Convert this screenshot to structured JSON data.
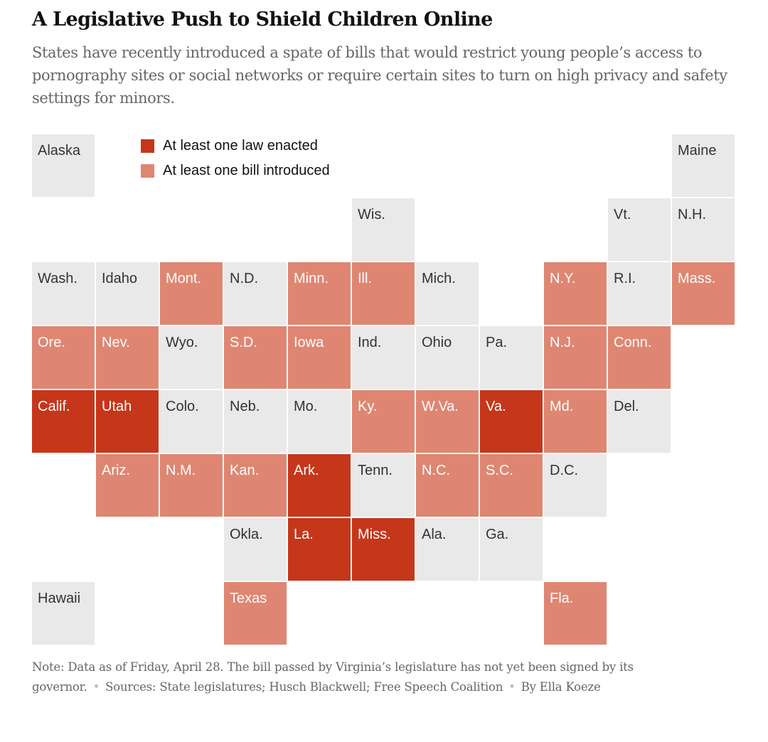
{
  "header": {
    "title": "A Legislative Push to Shield Children Online",
    "subtitle": "States have recently introduced a spate of bills that would restrict young people’s access to pornography sites or social networks or require certain sites to turn on high privacy and safety settings for minors."
  },
  "legend": {
    "items": [
      {
        "status": "enacted",
        "label": "At least one law enacted"
      },
      {
        "status": "introduced",
        "label": "At least one bill introduced"
      }
    ]
  },
  "colors": {
    "enacted": "#c5361a",
    "introduced": "#de8672",
    "none": "#e9e9e9"
  },
  "map": {
    "states": [
      {
        "label": "Alaska",
        "row": 0,
        "col": 0,
        "status": "none"
      },
      {
        "label": "Maine",
        "row": 0,
        "col": 10,
        "status": "none"
      },
      {
        "label": "Wis.",
        "row": 1,
        "col": 5,
        "status": "none"
      },
      {
        "label": "Vt.",
        "row": 1,
        "col": 9,
        "status": "none"
      },
      {
        "label": "N.H.",
        "row": 1,
        "col": 10,
        "status": "none"
      },
      {
        "label": "Wash.",
        "row": 2,
        "col": 0,
        "status": "none"
      },
      {
        "label": "Idaho",
        "row": 2,
        "col": 1,
        "status": "none"
      },
      {
        "label": "Mont.",
        "row": 2,
        "col": 2,
        "status": "introduced"
      },
      {
        "label": "N.D.",
        "row": 2,
        "col": 3,
        "status": "none"
      },
      {
        "label": "Minn.",
        "row": 2,
        "col": 4,
        "status": "introduced"
      },
      {
        "label": "Ill.",
        "row": 2,
        "col": 5,
        "status": "introduced"
      },
      {
        "label": "Mich.",
        "row": 2,
        "col": 6,
        "status": "none"
      },
      {
        "label": "N.Y.",
        "row": 2,
        "col": 8,
        "status": "introduced"
      },
      {
        "label": "R.I.",
        "row": 2,
        "col": 9,
        "status": "none"
      },
      {
        "label": "Mass.",
        "row": 2,
        "col": 10,
        "status": "introduced"
      },
      {
        "label": "Ore.",
        "row": 3,
        "col": 0,
        "status": "introduced"
      },
      {
        "label": "Nev.",
        "row": 3,
        "col": 1,
        "status": "introduced"
      },
      {
        "label": "Wyo.",
        "row": 3,
        "col": 2,
        "status": "none"
      },
      {
        "label": "S.D.",
        "row": 3,
        "col": 3,
        "status": "introduced"
      },
      {
        "label": "Iowa",
        "row": 3,
        "col": 4,
        "status": "introduced"
      },
      {
        "label": "Ind.",
        "row": 3,
        "col": 5,
        "status": "none"
      },
      {
        "label": "Ohio",
        "row": 3,
        "col": 6,
        "status": "none"
      },
      {
        "label": "Pa.",
        "row": 3,
        "col": 7,
        "status": "none"
      },
      {
        "label": "N.J.",
        "row": 3,
        "col": 8,
        "status": "introduced"
      },
      {
        "label": "Conn.",
        "row": 3,
        "col": 9,
        "status": "introduced"
      },
      {
        "label": "Calif.",
        "row": 4,
        "col": 0,
        "status": "enacted"
      },
      {
        "label": "Utah",
        "row": 4,
        "col": 1,
        "status": "enacted"
      },
      {
        "label": "Colo.",
        "row": 4,
        "col": 2,
        "status": "none"
      },
      {
        "label": "Neb.",
        "row": 4,
        "col": 3,
        "status": "none"
      },
      {
        "label": "Mo.",
        "row": 4,
        "col": 4,
        "status": "none"
      },
      {
        "label": "Ky.",
        "row": 4,
        "col": 5,
        "status": "introduced"
      },
      {
        "label": "W.Va.",
        "row": 4,
        "col": 6,
        "status": "introduced"
      },
      {
        "label": "Va.",
        "row": 4,
        "col": 7,
        "status": "enacted"
      },
      {
        "label": "Md.",
        "row": 4,
        "col": 8,
        "status": "introduced"
      },
      {
        "label": "Del.",
        "row": 4,
        "col": 9,
        "status": "none"
      },
      {
        "label": "Ariz.",
        "row": 5,
        "col": 1,
        "status": "introduced"
      },
      {
        "label": "N.M.",
        "row": 5,
        "col": 2,
        "status": "introduced"
      },
      {
        "label": "Kan.",
        "row": 5,
        "col": 3,
        "status": "introduced"
      },
      {
        "label": "Ark.",
        "row": 5,
        "col": 4,
        "status": "enacted"
      },
      {
        "label": "Tenn.",
        "row": 5,
        "col": 5,
        "status": "none"
      },
      {
        "label": "N.C.",
        "row": 5,
        "col": 6,
        "status": "introduced"
      },
      {
        "label": "S.C.",
        "row": 5,
        "col": 7,
        "status": "introduced"
      },
      {
        "label": "D.C.",
        "row": 5,
        "col": 8,
        "status": "none"
      },
      {
        "label": "Okla.",
        "row": 6,
        "col": 3,
        "status": "none"
      },
      {
        "label": "La.",
        "row": 6,
        "col": 4,
        "status": "enacted"
      },
      {
        "label": "Miss.",
        "row": 6,
        "col": 5,
        "status": "enacted"
      },
      {
        "label": "Ala.",
        "row": 6,
        "col": 6,
        "status": "none"
      },
      {
        "label": "Ga.",
        "row": 6,
        "col": 7,
        "status": "none"
      },
      {
        "label": "Hawaii",
        "row": 7,
        "col": 0,
        "status": "none"
      },
      {
        "label": "Texas",
        "row": 7,
        "col": 3,
        "status": "introduced"
      },
      {
        "label": "Fla.",
        "row": 7,
        "col": 8,
        "status": "introduced"
      }
    ]
  },
  "footer": {
    "note": "Note: Data as of Friday, April 28. The bill passed by Virginia’s legislature has not yet been signed by its governor.",
    "sources": "Sources: State legislatures; Husch Blackwell; Free Speech Coalition",
    "byline": "By Ella Koeze"
  }
}
